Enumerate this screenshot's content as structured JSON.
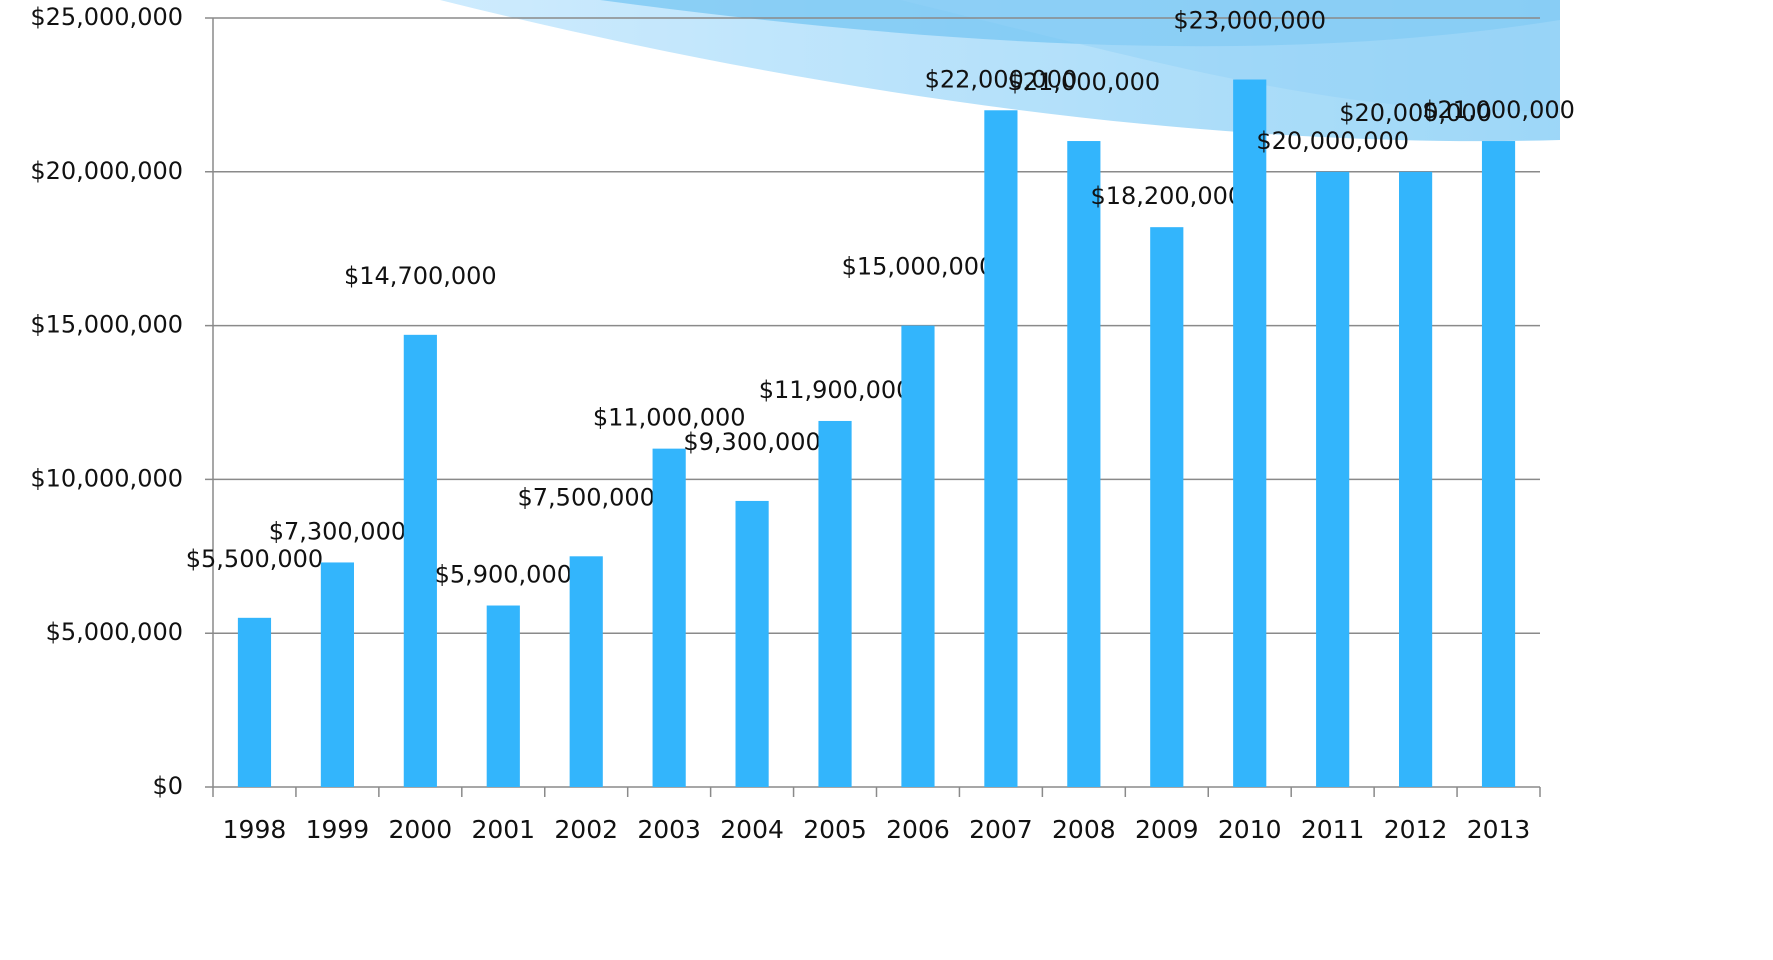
{
  "chart_data": {
    "type": "bar",
    "categories": [
      "1998",
      "1999",
      "2000",
      "2001",
      "2002",
      "2003",
      "2004",
      "2005",
      "2006",
      "2007",
      "2008",
      "2009",
      "2010",
      "2011",
      "2012",
      "2013"
    ],
    "values": [
      5500000,
      7300000,
      14700000,
      5900000,
      7500000,
      11000000,
      9300000,
      11900000,
      15000000,
      22000000,
      21000000,
      18200000,
      23000000,
      20000000,
      20000000,
      21000000
    ],
    "value_labels": [
      "$5,500,000",
      "$7,300,000",
      "$14,700,000",
      "$5,900,000",
      "$7,500,000",
      "$11,000,000",
      "$9,300,000",
      "$11,900,000",
      "$15,000,000",
      "$22,000,000",
      "$21,000,000",
      "$18,200,000",
      "$23,000,000",
      "$20,000,000",
      "$20,000,000",
      "$21,000,000"
    ],
    "color": "#33b5fc",
    "ylim": [
      0,
      25000000
    ],
    "yticks": [
      {
        "value": 0,
        "label": "$0"
      },
      {
        "value": 5000000,
        "label": "$5,000,000"
      },
      {
        "value": 10000000,
        "label": "$10,000,000"
      },
      {
        "value": 15000000,
        "label": "$15,000,000"
      },
      {
        "value": 20000000,
        "label": "$20,000,000"
      },
      {
        "value": 25000000,
        "label": "$25,000,000"
      }
    ],
    "grid": true
  }
}
